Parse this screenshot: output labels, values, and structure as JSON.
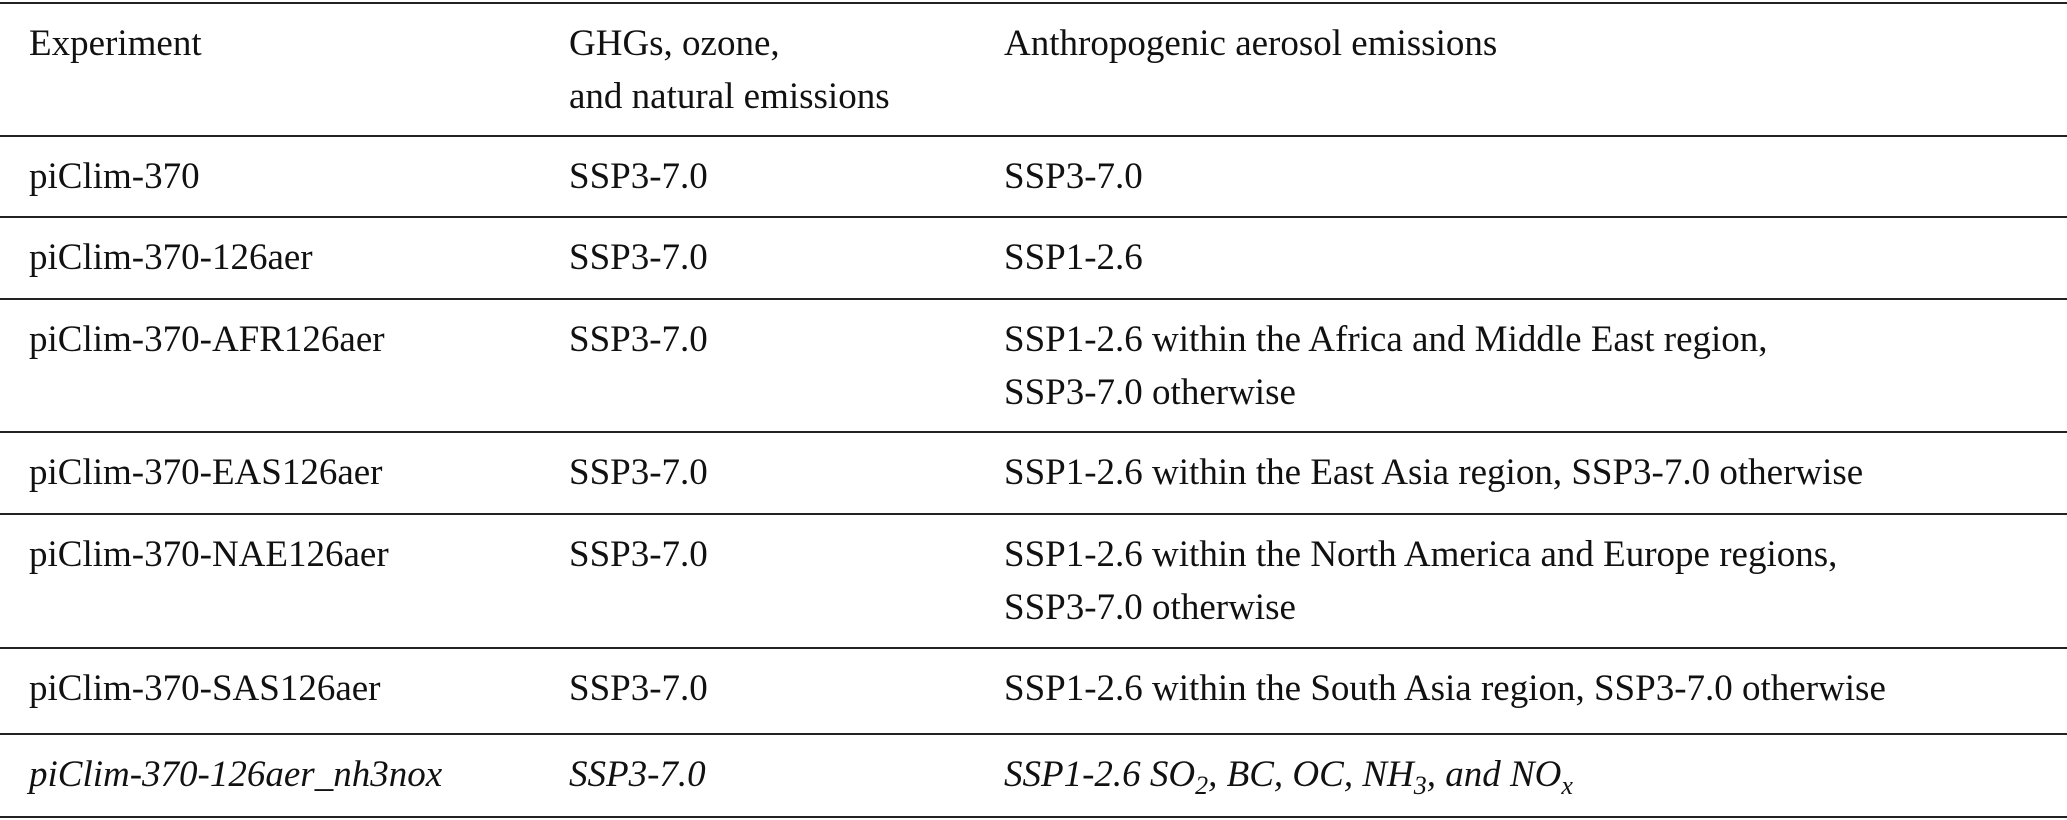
{
  "table": {
    "header": [
      [
        "Experiment"
      ],
      [
        "GHGs, ozone,",
        "and natural emissions"
      ],
      [
        "Anthropogenic aerosol emissions"
      ]
    ],
    "rows": [
      {
        "cells": [
          [
            "piClim-370"
          ],
          [
            "SSP3-7.0"
          ],
          [
            "SSP3-7.0"
          ]
        ]
      },
      {
        "cells": [
          [
            "piClim-370-126aer"
          ],
          [
            "SSP3-7.0"
          ],
          [
            "SSP1-2.6"
          ]
        ]
      },
      {
        "cells": [
          [
            "piClim-370-AFR126aer"
          ],
          [
            "SSP3-7.0"
          ],
          [
            "SSP1-2.6 within the Africa and Middle East region,",
            "SSP3-7.0 otherwise"
          ]
        ]
      },
      {
        "cells": [
          [
            "piClim-370-EAS126aer"
          ],
          [
            "SSP3-7.0"
          ],
          [
            "SSP1-2.6 within the East Asia region, SSP3-7.0 otherwise"
          ]
        ]
      },
      {
        "cells": [
          [
            "piClim-370-NAE126aer"
          ],
          [
            "SSP3-7.0"
          ],
          [
            "SSP1-2.6 within the North America and Europe regions,",
            "SSP3-7.0 otherwise"
          ]
        ]
      },
      {
        "cells": [
          [
            "piClim-370-SAS126aer"
          ],
          [
            "SSP3-7.0"
          ],
          [
            "SSP1-2.6 within the South Asia region, SSP3-7.0 otherwise"
          ]
        ]
      },
      {
        "italic": true,
        "cells": [
          [
            "piClim-370-126aer_nh3nox"
          ],
          [
            "SSP3-7.0"
          ],
          {
            "segments": [
              "SSP1-2.6 SO",
              "2",
              ", BC, OC, NH",
              "3",
              ", and NO",
              "x"
            ]
          }
        ]
      }
    ]
  }
}
